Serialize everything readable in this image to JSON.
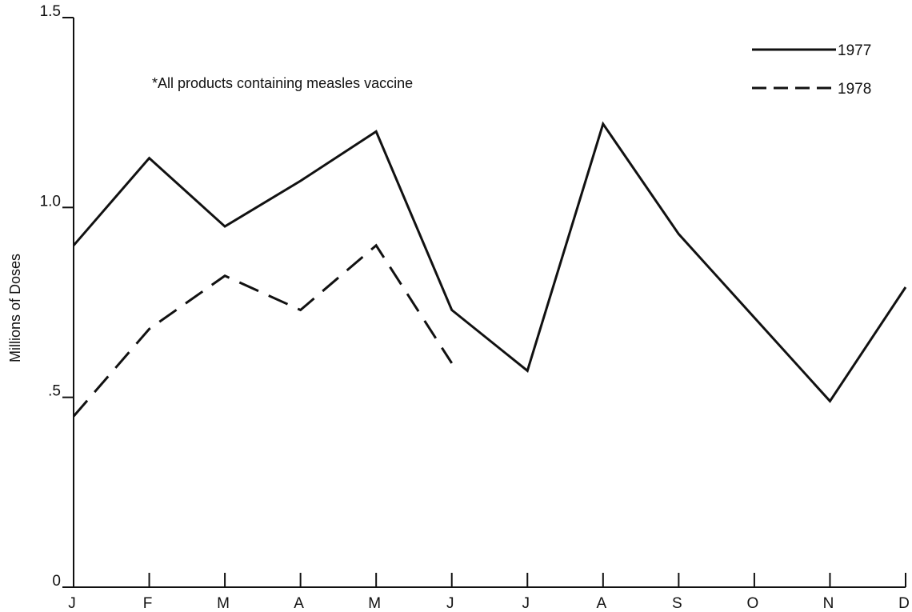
{
  "chart_data": {
    "type": "line",
    "title": "",
    "ylabel": "Millions of Doses",
    "xlabel": "",
    "categories": [
      "J",
      "F",
      "M",
      "A",
      "M",
      "J",
      "J",
      "A",
      "S",
      "O",
      "N",
      "D"
    ],
    "ylim": [
      0,
      1.5
    ],
    "y_ticks": [
      {
        "value": 0,
        "label": "0"
      },
      {
        "value": 0.5,
        "label": ".5"
      },
      {
        "value": 1.0,
        "label": "1.0"
      },
      {
        "value": 1.5,
        "label": "1.5"
      }
    ],
    "series": [
      {
        "name": "1977",
        "style": "solid",
        "color": "#111111",
        "values": [
          0.9,
          1.13,
          0.95,
          1.07,
          1.2,
          0.73,
          0.57,
          1.22,
          0.93,
          0.71,
          0.49,
          0.79
        ]
      },
      {
        "name": "1978",
        "style": "dashed",
        "color": "#111111",
        "values": [
          0.45,
          0.68,
          0.82,
          0.73,
          0.9,
          0.59,
          null,
          null,
          null,
          null,
          null,
          null
        ]
      }
    ],
    "annotation": "*All products containing measles vaccine",
    "legend_position": "top-right",
    "grid": false
  }
}
